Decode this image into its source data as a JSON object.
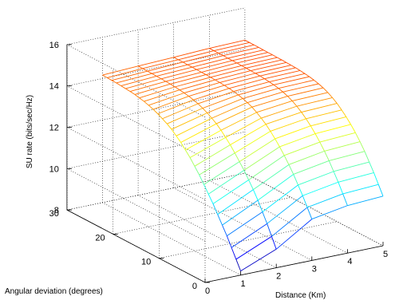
{
  "chart_data": {
    "type": "surface",
    "title": "",
    "xlabel": "Distance (Km)",
    "ylabel": "Angular deviation (degrees)",
    "zlabel": "SU rate (bits/sec/Hz)",
    "xlim": [
      0,
      5
    ],
    "ylim": [
      0,
      30
    ],
    "zlim": [
      8,
      16
    ],
    "xticks": [
      "0",
      "1",
      "2",
      "3",
      "4",
      "5"
    ],
    "yticks": [
      "0",
      "10",
      "20",
      "30"
    ],
    "zticks": [
      "8",
      "10",
      "12",
      "14",
      "16"
    ],
    "grid": true,
    "colormap": "jet",
    "edge_color_data": "z",
    "distance_values_km": [
      1,
      2,
      3,
      4,
      5
    ],
    "angle_values_deg": [
      0,
      1,
      2,
      3,
      4,
      5,
      6,
      7,
      8,
      9,
      10,
      11,
      12,
      13,
      14,
      15,
      16,
      17,
      18,
      19,
      20,
      21,
      22,
      23,
      24,
      25,
      26,
      27,
      28,
      29,
      30
    ],
    "series": [
      {
        "distance_km": 1,
        "su_rate": [
          8.2,
          8.65,
          9.1,
          9.55,
          9.95,
          10.35,
          10.75,
          11.1,
          11.45,
          11.8,
          12.1,
          12.4,
          12.65,
          12.9,
          13.1,
          13.3,
          13.45,
          13.58,
          13.7,
          13.8,
          13.88,
          13.95,
          14.0,
          14.05,
          14.08,
          14.1,
          14.12,
          14.14,
          14.15,
          14.16,
          14.17
        ]
      },
      {
        "distance_km": 2,
        "su_rate": [
          8.9,
          9.4,
          9.9,
          10.35,
          10.8,
          11.2,
          11.55,
          11.9,
          12.2,
          12.5,
          12.78,
          13.02,
          13.25,
          13.45,
          13.6,
          13.74,
          13.85,
          13.95,
          14.02,
          14.08,
          14.12,
          14.15,
          14.18,
          14.2,
          14.21,
          14.22,
          14.23,
          14.24,
          14.24,
          14.25,
          14.25
        ]
      },
      {
        "distance_km": 3,
        "su_rate": [
          10.0,
          10.45,
          10.9,
          11.3,
          11.7,
          12.05,
          12.38,
          12.68,
          12.95,
          13.2,
          13.42,
          13.6,
          13.76,
          13.9,
          14.0,
          14.08,
          14.14,
          14.19,
          14.22,
          14.25,
          14.27,
          14.28,
          14.29,
          14.3,
          14.3,
          14.31,
          14.31,
          14.31,
          14.32,
          14.32,
          14.32
        ]
      },
      {
        "distance_km": 4,
        "su_rate": [
          10.3,
          10.75,
          11.2,
          11.6,
          12.0,
          12.35,
          12.67,
          12.96,
          13.22,
          13.45,
          13.65,
          13.82,
          13.96,
          14.07,
          14.16,
          14.22,
          14.27,
          14.3,
          14.33,
          14.35,
          14.36,
          14.37,
          14.38,
          14.38,
          14.39,
          14.39,
          14.39,
          14.4,
          14.4,
          14.4,
          14.4
        ]
      },
      {
        "distance_km": 5,
        "su_rate": [
          10.4,
          10.85,
          11.3,
          11.7,
          12.1,
          12.45,
          12.77,
          13.05,
          13.3,
          13.52,
          13.72,
          13.88,
          14.01,
          14.12,
          14.2,
          14.26,
          14.31,
          14.34,
          14.37,
          14.39,
          14.4,
          14.41,
          14.42,
          14.42,
          14.43,
          14.43,
          14.43,
          14.44,
          14.44,
          14.44,
          14.44
        ]
      }
    ]
  }
}
